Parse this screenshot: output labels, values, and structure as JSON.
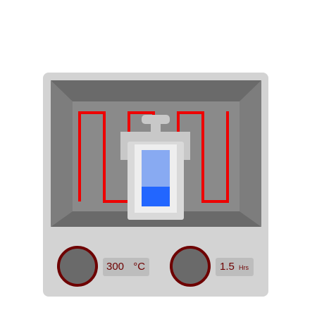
{
  "furnace": {
    "temperature": {
      "value": "300",
      "unit": "°C"
    },
    "time": {
      "value": "1.5",
      "unit": "Hrs"
    }
  },
  "vessel": {
    "fill_fraction": 0.35
  },
  "colors": {
    "body": "#d3d3d3",
    "chamber_back": "#8a8a8a",
    "chamber_top": "#6a6a6a",
    "chamber_side": "#7c7c7c",
    "heating_element": "#ee0000",
    "knob_fill": "#6a6a6a",
    "knob_ring": "#6e0000",
    "display_bg": "#bdbdbd",
    "display_text": "#6e0000",
    "liquid": "#2266ff",
    "glass": "#88aaf2"
  },
  "icons": {
    "temperature_knob": "dial-knob-icon",
    "time_knob": "dial-knob-icon",
    "heater": "heating-coil-icon",
    "vessel": "sealed-vial-icon"
  }
}
